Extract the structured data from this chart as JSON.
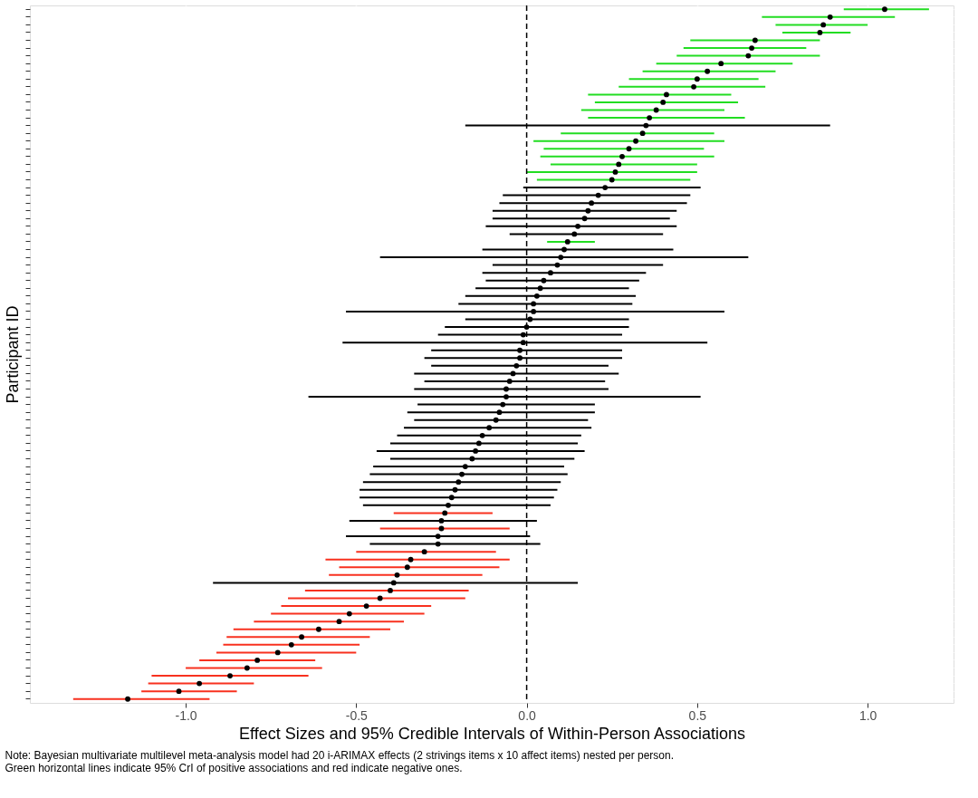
{
  "chart_data": {
    "type": "bar",
    "orientation": "horizontal",
    "xlabel": "Effect Sizes and 95% Credible Intervals of Within-Person Associations",
    "ylabel": "Participant ID",
    "annotations": [
      "Note: Bayesian multivariate multilevel meta-analysis model had 20 i-ARIMAX effects (2 strivings items x 10 affect items) nested per person.",
      "Green horizontal lines indicate 95% CrI of positive associations and red indicate negative ones."
    ],
    "categories": [
      null,
      null,
      null,
      null,
      null,
      null,
      null,
      null,
      null,
      null,
      null,
      null,
      null,
      null,
      null,
      null,
      null,
      null,
      null,
      null,
      null,
      null,
      null,
      null,
      null,
      null,
      null,
      null,
      null,
      null,
      null,
      null,
      null,
      null,
      null,
      null,
      null,
      null,
      null,
      null,
      null,
      null,
      null,
      null,
      null,
      null,
      null,
      null,
      null,
      null,
      null,
      null,
      null,
      null,
      null,
      null,
      null,
      null,
      null,
      null,
      null,
      null,
      null,
      null,
      null,
      null,
      null,
      null,
      null,
      null,
      null,
      null,
      null,
      null,
      null,
      null,
      null,
      null,
      null,
      null,
      null,
      null,
      null,
      null,
      null,
      null,
      null,
      null,
      null,
      null
    ],
    "series": [
      {
        "base": [
          0.93,
          0.69,
          0.73,
          0.75,
          0.48,
          0.46,
          0.44,
          0.38,
          0.34,
          0.3,
          0.27,
          0.18,
          0.2,
          0.16,
          0.18,
          -0.18,
          0.1,
          0.02,
          0.05,
          0.04,
          0.07,
          0.0,
          0.03,
          -0.01,
          -0.07,
          -0.08,
          -0.1,
          -0.1,
          -0.12,
          -0.05,
          0.06,
          -0.13,
          -0.43,
          -0.1,
          -0.13,
          -0.12,
          -0.15,
          -0.18,
          -0.2,
          -0.53,
          -0.18,
          -0.24,
          -0.26,
          -0.54,
          -0.28,
          -0.3,
          -0.28,
          -0.33,
          -0.3,
          -0.33,
          -0.64,
          -0.32,
          -0.35,
          -0.33,
          -0.36,
          -0.38,
          -0.4,
          -0.44,
          -0.4,
          -0.45,
          -0.46,
          -0.48,
          -0.49,
          -0.49,
          -0.48,
          -0.39,
          -0.52,
          -0.43,
          -0.53,
          -0.46,
          -0.5,
          -0.59,
          -0.55,
          -0.58,
          -0.92,
          -0.65,
          -0.7,
          -0.72,
          -0.75,
          -0.8,
          -0.86,
          -0.88,
          -0.89,
          -0.91,
          -0.96,
          -1.0,
          -1.1,
          -1.11,
          -1.13,
          -1.33
        ],
        "values": [
          0.25,
          0.39,
          0.27,
          0.2,
          0.38,
          0.36,
          0.42,
          0.4,
          0.39,
          0.38,
          0.43,
          0.42,
          0.42,
          0.42,
          0.46,
          1.07,
          0.45,
          0.56,
          0.47,
          0.51,
          0.43,
          0.5,
          0.45,
          0.52,
          0.55,
          0.55,
          0.54,
          0.52,
          0.56,
          0.45,
          0.14,
          0.56,
          1.08,
          0.5,
          0.48,
          0.45,
          0.45,
          0.5,
          0.51,
          1.11,
          0.48,
          0.54,
          0.54,
          1.07,
          0.56,
          0.58,
          0.52,
          0.6,
          0.53,
          0.57,
          1.15,
          0.52,
          0.55,
          0.51,
          0.55,
          0.54,
          0.55,
          0.61,
          0.54,
          0.56,
          0.58,
          0.58,
          0.58,
          0.57,
          0.55,
          0.29,
          0.55,
          0.38,
          0.54,
          0.5,
          0.41,
          0.54,
          0.47,
          0.45,
          1.07,
          0.48,
          0.52,
          0.44,
          0.45,
          0.44,
          0.46,
          0.42,
          0.4,
          0.41,
          0.34,
          0.4,
          0.46,
          0.31,
          0.28,
          0.4
        ],
        "colors": [
          "#22dd22",
          "#22dd22",
          "#22dd22",
          "#22dd22",
          "#22dd22",
          "#22dd22",
          "#22dd22",
          "#22dd22",
          "#22dd22",
          "#22dd22",
          "#22dd22",
          "#22dd22",
          "#22dd22",
          "#22dd22",
          "#22dd22",
          "#000000",
          "#22dd22",
          "#22dd22",
          "#22dd22",
          "#22dd22",
          "#22dd22",
          "#22dd22",
          "#22dd22",
          "#000000",
          "#000000",
          "#000000",
          "#000000",
          "#000000",
          "#000000",
          "#000000",
          "#22dd22",
          "#000000",
          "#000000",
          "#000000",
          "#000000",
          "#000000",
          "#000000",
          "#000000",
          "#000000",
          "#000000",
          "#000000",
          "#000000",
          "#000000",
          "#000000",
          "#000000",
          "#000000",
          "#000000",
          "#000000",
          "#000000",
          "#000000",
          "#000000",
          "#000000",
          "#000000",
          "#000000",
          "#000000",
          "#000000",
          "#000000",
          "#000000",
          "#000000",
          "#000000",
          "#000000",
          "#000000",
          "#000000",
          "#000000",
          "#000000",
          "#f8311f",
          "#000000",
          "#f8311f",
          "#000000",
          "#000000",
          "#f8311f",
          "#f8311f",
          "#f8311f",
          "#f8311f",
          "#000000",
          "#f8311f",
          "#f8311f",
          "#f8311f",
          "#f8311f",
          "#f8311f",
          "#f8311f",
          "#f8311f",
          "#f8311f",
          "#f8311f",
          "#f8311f",
          "#f8311f",
          "#f8311f",
          "#f8311f",
          "#f8311f",
          "#f8311f"
        ]
      },
      {
        "type": "scatter",
        "color": "#000000",
        "marker": "circle",
        "values": [
          1.05,
          0.89,
          0.87,
          0.86,
          0.67,
          0.66,
          0.65,
          0.57,
          0.53,
          0.5,
          0.49,
          0.41,
          0.4,
          0.38,
          0.36,
          0.35,
          0.34,
          0.32,
          0.3,
          0.28,
          0.27,
          0.26,
          0.25,
          0.23,
          0.21,
          0.19,
          0.18,
          0.17,
          0.15,
          0.14,
          0.12,
          0.11,
          0.1,
          0.09,
          0.07,
          0.05,
          0.04,
          0.03,
          0.02,
          0.02,
          0.01,
          0.0,
          -0.01,
          -0.01,
          -0.02,
          -0.02,
          -0.03,
          -0.04,
          -0.05,
          -0.06,
          -0.06,
          -0.07,
          -0.08,
          -0.09,
          -0.11,
          -0.13,
          -0.14,
          -0.15,
          -0.16,
          -0.18,
          -0.19,
          -0.2,
          -0.21,
          -0.22,
          -0.23,
          -0.24,
          -0.25,
          -0.25,
          -0.26,
          -0.26,
          -0.3,
          -0.34,
          -0.35,
          -0.38,
          -0.39,
          -0.4,
          -0.43,
          -0.47,
          -0.52,
          -0.55,
          -0.61,
          -0.66,
          -0.69,
          -0.73,
          -0.79,
          -0.82,
          -0.87,
          -0.96,
          -1.02,
          -1.17
        ]
      }
    ],
    "xlim": [
      -1.457,
      1.252
    ],
    "xticks": [
      {
        "value": -1,
        "label": "-1.0"
      },
      {
        "value": -0.5,
        "label": "-0.5"
      },
      {
        "value": 0,
        "label": "0.0"
      },
      {
        "value": 0.5,
        "label": "0.5"
      },
      {
        "value": 1,
        "label": "1.0"
      }
    ],
    "ref_lines": [
      {
        "axis": "x",
        "value": 0,
        "line_style": "dashed",
        "color": "#000000"
      }
    ],
    "grid": true,
    "tick_labels": "x"
  }
}
